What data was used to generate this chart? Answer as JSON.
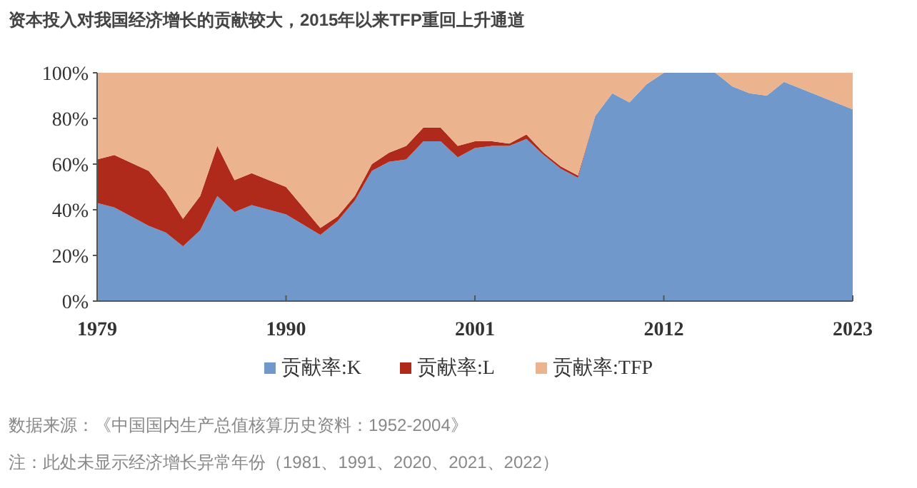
{
  "chart_data": {
    "type": "area",
    "stacked": true,
    "title": "资本投入对我国经济增长的贡献较大，2015年以来TFP重回上升通道",
    "x": [
      1979,
      1980,
      1982,
      1983,
      1984,
      1985,
      1986,
      1987,
      1988,
      1989,
      1990,
      1992,
      1993,
      1994,
      1995,
      1996,
      1997,
      1998,
      1999,
      2000,
      2001,
      2002,
      2003,
      2004,
      2005,
      2006,
      2007,
      2008,
      2009,
      2010,
      2011,
      2012,
      2013,
      2014,
      2015,
      2016,
      2017,
      2018,
      2019,
      2023
    ],
    "series": [
      {
        "name": "贡献率:K",
        "color": "#7098cb",
        "values": [
          43,
          41,
          33,
          30,
          24,
          31,
          46,
          39,
          42,
          40,
          38,
          29,
          35,
          44,
          57,
          61,
          62,
          70,
          70,
          63,
          67,
          68,
          68,
          71,
          64,
          58,
          54,
          81,
          91,
          87,
          95,
          100,
          100,
          100,
          100,
          94,
          91,
          90,
          96,
          84
        ]
      },
      {
        "name": "贡献率:L",
        "color": "#b02a1b",
        "values": [
          19,
          23,
          24,
          18,
          12,
          15,
          22,
          14,
          14,
          13,
          12,
          3,
          2,
          2,
          3,
          4,
          6,
          6,
          6,
          5,
          3,
          2,
          1,
          2,
          1,
          1,
          1,
          0,
          0,
          0,
          0,
          0,
          0,
          0,
          0,
          0,
          0,
          0,
          0,
          0
        ]
      },
      {
        "name": "贡献率:TFP",
        "color": "#ebb48f",
        "values": [
          38,
          36,
          43,
          52,
          64,
          54,
          32,
          47,
          44,
          47,
          50,
          68,
          63,
          54,
          40,
          35,
          32,
          24,
          24,
          32,
          30,
          30,
          31,
          27,
          35,
          41,
          45,
          19,
          9,
          13,
          5,
          0,
          0,
          0,
          0,
          6,
          9,
          10,
          4,
          16
        ]
      }
    ],
    "xlim": [
      1979,
      2023
    ],
    "xticks": [
      1979,
      1990,
      2001,
      2012,
      2023
    ],
    "ylim": [
      0,
      100
    ],
    "yticks": [
      {
        "value": 0,
        "label": "0%"
      },
      {
        "value": 20,
        "label": "20%"
      },
      {
        "value": 40,
        "label": "40%"
      },
      {
        "value": 60,
        "label": "60%"
      },
      {
        "value": 80,
        "label": "80%"
      },
      {
        "value": 100,
        "label": "100%"
      }
    ],
    "legend": "bottom",
    "annotations": [
      "数据来源：《中国国内生产总值核算历史资料：1952-2004》",
      "注：此处未显示经济增长异常年份（1981、1991、2020、2021、2022）"
    ]
  }
}
